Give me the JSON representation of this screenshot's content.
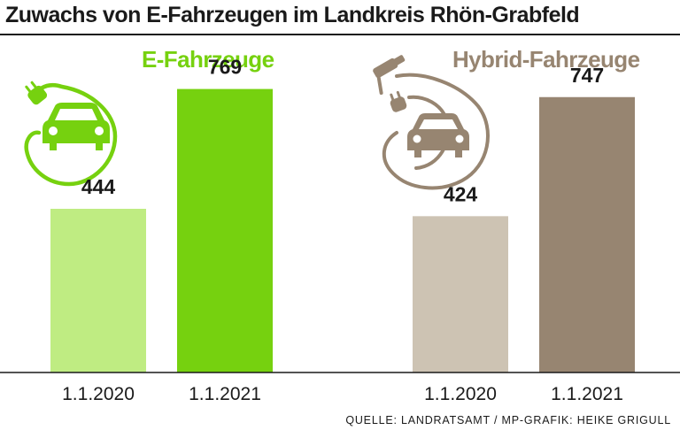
{
  "title": "Zuwachs von E-Fahrzeugen im Landkreis Rhön-Grabfeld",
  "source": "QUELLE: LANDRATSAMT / MP-GRAFIK: HEIKE GRIGULL",
  "icons": {
    "left": "charging-plug-car-icon",
    "right": "fuel-nozzle-plug-car-icon"
  },
  "colors": {
    "e_light": "#bfec82",
    "e_dark": "#76d10f",
    "hybrid_light": "#cdc3b3",
    "hybrid_dark": "#978571",
    "text": "#1a1a1a"
  },
  "chart_data": [
    {
      "type": "bar",
      "title": "E-Fahrzeuge",
      "categories": [
        "1.1.2020",
        "1.1.2021"
      ],
      "values": [
        444,
        769
      ],
      "ylim": [
        0,
        900
      ],
      "grid": false
    },
    {
      "type": "bar",
      "title": "Hybrid-Fahrzeuge",
      "categories": [
        "1.1.2020",
        "1.1.2021"
      ],
      "values": [
        424,
        747
      ],
      "ylim": [
        0,
        900
      ],
      "grid": false
    }
  ]
}
